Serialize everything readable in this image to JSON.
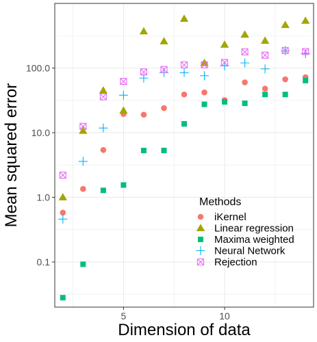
{
  "chart_data": {
    "type": "scatter",
    "xlabel": "Dimension of data",
    "ylabel": "Mean squared error",
    "x_scale": "linear",
    "y_scale": "log",
    "xlim": [
      1.6,
      14.4
    ],
    "ylim": [
      0.02,
      1000
    ],
    "x_ticks": [
      {
        "value": 5,
        "label": "5"
      },
      {
        "value": 10,
        "label": "10"
      }
    ],
    "y_ticks": [
      {
        "value": 0.1,
        "label": "0.1"
      },
      {
        "value": 1,
        "label": "1.0"
      },
      {
        "value": 10,
        "label": "10.0"
      },
      {
        "value": 100,
        "label": "100.0"
      }
    ],
    "grid": true,
    "legend_title": "Methods",
    "legend_position": "bottom-right",
    "series": [
      {
        "name": "iKernel",
        "marker": "circle",
        "color": "#F8766D",
        "x": [
          2,
          3,
          4,
          5,
          6,
          7,
          8,
          9,
          10,
          11,
          12,
          13,
          14
        ],
        "y": [
          0.58,
          1.35,
          5.4,
          19.5,
          19,
          24,
          39,
          42,
          32,
          60,
          48,
          67,
          72
        ]
      },
      {
        "name": "Linear regression",
        "marker": "triangle",
        "color": "#A3A500",
        "x": [
          2,
          3,
          4,
          5,
          6,
          7,
          8,
          9,
          10,
          11,
          12,
          13,
          14
        ],
        "y": [
          1.0,
          10.7,
          45,
          22,
          370,
          260,
          580,
          120,
          230,
          330,
          265,
          465,
          540
        ]
      },
      {
        "name": "Maxima weighted",
        "marker": "square",
        "color": "#00BF7D",
        "x": [
          2,
          3,
          4,
          5,
          6,
          7,
          8,
          9,
          10,
          11,
          12,
          13,
          14
        ],
        "y": [
          0.028,
          0.092,
          1.28,
          1.55,
          5.3,
          5.3,
          13.7,
          27.5,
          30,
          28.5,
          39,
          39,
          64
        ]
      },
      {
        "name": "Neural Network",
        "marker": "plus",
        "color": "#00B0F6",
        "x": [
          2,
          3,
          4,
          5,
          6,
          7,
          8,
          9,
          10,
          11,
          12,
          13,
          14
        ],
        "y": [
          0.46,
          3.6,
          11.8,
          38,
          70,
          85,
          85,
          76,
          108,
          120,
          97,
          185,
          167
        ]
      },
      {
        "name": "Rejection",
        "marker": "boxx",
        "color": "#E76BF3",
        "x": [
          2,
          3,
          4,
          5,
          6,
          7,
          8,
          9,
          10,
          11,
          12,
          13,
          14
        ],
        "y": [
          2.2,
          12.5,
          36,
          62,
          87,
          95,
          112,
          112,
          122,
          178,
          158,
          187,
          180
        ]
      }
    ]
  }
}
